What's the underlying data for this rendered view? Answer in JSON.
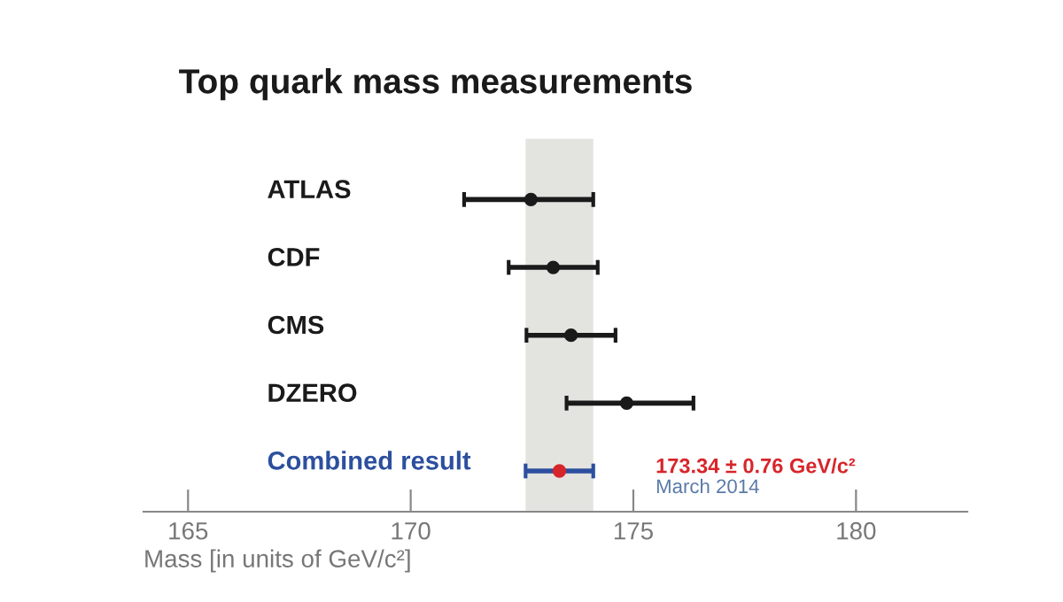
{
  "chart_data": {
    "type": "scatter",
    "title": "Top quark mass measurements",
    "xlabel": "Mass [in units of GeV/c²]",
    "categories": [
      "ATLAS",
      "CDF",
      "CMS",
      "DZERO",
      "Combined result"
    ],
    "orientation": "horizontal",
    "series": [
      {
        "color": "#1a1a1a",
        "values": [
          172.7,
          173.2,
          173.6,
          174.85,
          null
        ],
        "errors": [
          [
            171.2,
            174.1
          ],
          1.0,
          1.0,
          [
            173.5,
            176.35
          ],
          null
        ]
      },
      {
        "color": "#2c4f9e",
        "colors": [
          null,
          null,
          null,
          null,
          "#d7262b"
        ],
        "values": [
          null,
          null,
          null,
          null,
          173.34
        ],
        "errors": [
          null,
          null,
          null,
          null,
          0.76
        ]
      }
    ],
    "bands": [
      {
        "axis": "x",
        "from": 172.58,
        "to": 174.1,
        "color": "#e3e4e0"
      }
    ],
    "annotations": [
      "173.34 ± 0.76 GeV/c²",
      "March 2014"
    ],
    "xlim": [
      164,
      182.5
    ],
    "xticks": [
      165,
      170,
      175,
      180
    ],
    "marker": "circle",
    "grid": false,
    "legend": false
  }
}
